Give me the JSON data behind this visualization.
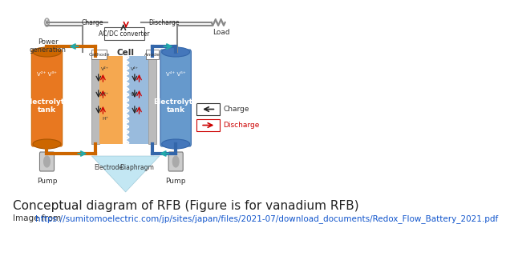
{
  "title_line1": "Conceptual diagram of RFB (Figure is for vanadium RFB)",
  "title_line2": "Image from ",
  "url": "https://sumitomoelectric.com/jp/sites/japan/files/2021-07/download_documents/Redox_Flow_Battery_2021.pdf",
  "url_display": "https://sumitomoelectric.com/jp/sites/japan/files/2021-\n07/download_documents/Redox_Flow_Battery_2021.pdf",
  "bg_color": "#ffffff",
  "orange": "#E87820",
  "blue_tank": "#6699CC",
  "cell_orange": "#F5A850",
  "cell_blue": "#99BBDD",
  "electrode_gray": "#BBBBBB",
  "pipe_color": "#CC8833",
  "pipe_blue": "#7799BB",
  "teal_arrow": "#22AAAA",
  "pump_color": "#AAAAAA",
  "connector_color": "#999999",
  "charge_arrow_color": "#222222",
  "discharge_arrow_color": "#CC0000",
  "label_color": "#333333",
  "red_color": "#CC0000",
  "title_fontsize": 11,
  "subtitle_fontsize": 7.5,
  "label_fontsize": 6.5
}
